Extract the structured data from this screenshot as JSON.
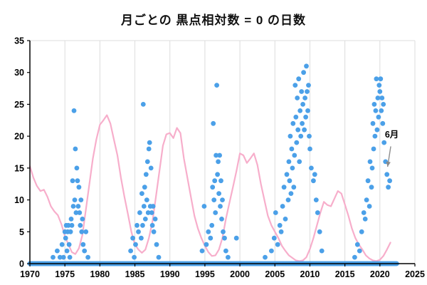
{
  "chart_data": {
    "type": "scatter",
    "title": "月ごとの  黒点相対数 = 0  の日数",
    "xlabel": "",
    "ylabel": "",
    "xlim": [
      1970,
      2025
    ],
    "ylim": [
      0,
      35
    ],
    "x_ticks": [
      1970,
      1975,
      1980,
      1985,
      1990,
      1995,
      2000,
      2005,
      2010,
      2015,
      2020,
      2025
    ],
    "y_ticks": [
      0,
      5,
      10,
      15,
      20,
      25,
      30,
      35
    ],
    "grid": "vertical",
    "legend": "none",
    "dot_radius": 3.4,
    "colors": {
      "dot": "#4BA0E8",
      "line": "#F7AECB",
      "grid": "#DCDCDC",
      "axis": "#000000",
      "arrow": "#8C8C8C",
      "text": "#000000"
    },
    "zero_dots": {
      "start": 1970.0,
      "end": 2022.4,
      "step": 0.0833
    },
    "scatter_points": [
      [
        1973.3,
        1
      ],
      [
        1973.9,
        2
      ],
      [
        1974.3,
        1
      ],
      [
        1974.6,
        3
      ],
      [
        1974.8,
        1
      ],
      [
        1975.0,
        5
      ],
      [
        1975.1,
        4
      ],
      [
        1975.2,
        6
      ],
      [
        1975.3,
        2
      ],
      [
        1975.4,
        5
      ],
      [
        1975.5,
        6
      ],
      [
        1975.6,
        3
      ],
      [
        1975.7,
        1
      ],
      [
        1975.8,
        5
      ],
      [
        1975.9,
        7
      ],
      [
        1976.0,
        6
      ],
      [
        1976.1,
        13
      ],
      [
        1976.2,
        9
      ],
      [
        1976.3,
        24
      ],
      [
        1976.4,
        10
      ],
      [
        1976.5,
        18
      ],
      [
        1976.6,
        8
      ],
      [
        1976.7,
        15
      ],
      [
        1976.8,
        13
      ],
      [
        1976.9,
        9
      ],
      [
        1977.0,
        12
      ],
      [
        1977.1,
        8
      ],
      [
        1977.2,
        6
      ],
      [
        1977.3,
        10
      ],
      [
        1977.4,
        5
      ],
      [
        1977.5,
        7
      ],
      [
        1977.6,
        3
      ],
      [
        1977.8,
        2
      ],
      [
        1978.0,
        5
      ],
      [
        1978.3,
        1
      ],
      [
        1984.4,
        2
      ],
      [
        1984.7,
        4
      ],
      [
        1984.9,
        1
      ],
      [
        1985.1,
        3
      ],
      [
        1985.3,
        6
      ],
      [
        1985.5,
        5
      ],
      [
        1985.7,
        8
      ],
      [
        1985.9,
        4
      ],
      [
        1986.0,
        11
      ],
      [
        1986.1,
        6
      ],
      [
        1986.2,
        25
      ],
      [
        1986.3,
        9
      ],
      [
        1986.4,
        12
      ],
      [
        1986.5,
        7
      ],
      [
        1986.6,
        14
      ],
      [
        1986.7,
        10
      ],
      [
        1986.8,
        16
      ],
      [
        1986.9,
        8
      ],
      [
        1987.0,
        18
      ],
      [
        1987.1,
        19
      ],
      [
        1987.2,
        9
      ],
      [
        1987.3,
        15
      ],
      [
        1987.4,
        8
      ],
      [
        1987.5,
        6
      ],
      [
        1987.6,
        9
      ],
      [
        1987.7,
        5
      ],
      [
        1987.9,
        7
      ],
      [
        1988.1,
        3
      ],
      [
        1988.4,
        1
      ],
      [
        1994.6,
        2
      ],
      [
        1994.9,
        9
      ],
      [
        1995.2,
        3
      ],
      [
        1995.5,
        5
      ],
      [
        1995.8,
        4
      ],
      [
        1996.0,
        6
      ],
      [
        1996.1,
        12
      ],
      [
        1996.2,
        22
      ],
      [
        1996.3,
        10
      ],
      [
        1996.4,
        13
      ],
      [
        1996.5,
        8
      ],
      [
        1996.6,
        17
      ],
      [
        1996.7,
        28
      ],
      [
        1996.8,
        14
      ],
      [
        1996.9,
        16
      ],
      [
        1997.0,
        11
      ],
      [
        1997.1,
        17
      ],
      [
        1997.2,
        9
      ],
      [
        1997.3,
        13
      ],
      [
        1997.4,
        7
      ],
      [
        1997.5,
        10
      ],
      [
        1997.6,
        5
      ],
      [
        1997.8,
        4
      ],
      [
        1998.0,
        2
      ],
      [
        1998.3,
        1
      ],
      [
        1999.5,
        4
      ],
      [
        2003.6,
        1
      ],
      [
        2004.5,
        2
      ],
      [
        2004.9,
        4
      ],
      [
        2005.1,
        8
      ],
      [
        2005.4,
        3
      ],
      [
        2005.7,
        6
      ],
      [
        2005.9,
        5
      ],
      [
        2006.1,
        9
      ],
      [
        2006.3,
        12
      ],
      [
        2006.5,
        7
      ],
      [
        2006.7,
        14
      ],
      [
        2006.9,
        10
      ],
      [
        2007.0,
        16
      ],
      [
        2007.1,
        13
      ],
      [
        2007.2,
        20
      ],
      [
        2007.3,
        11
      ],
      [
        2007.4,
        18
      ],
      [
        2007.5,
        15
      ],
      [
        2007.6,
        22
      ],
      [
        2007.7,
        12
      ],
      [
        2007.8,
        17
      ],
      [
        2007.9,
        28
      ],
      [
        2008.0,
        23
      ],
      [
        2008.1,
        19
      ],
      [
        2008.2,
        26
      ],
      [
        2008.3,
        21
      ],
      [
        2008.4,
        29
      ],
      [
        2008.5,
        16
      ],
      [
        2008.6,
        24
      ],
      [
        2008.7,
        20
      ],
      [
        2008.8,
        27
      ],
      [
        2008.9,
        22
      ],
      [
        2009.0,
        25
      ],
      [
        2009.1,
        30
      ],
      [
        2009.2,
        21
      ],
      [
        2009.3,
        26
      ],
      [
        2009.4,
        23
      ],
      [
        2009.5,
        31
      ],
      [
        2009.6,
        27
      ],
      [
        2009.7,
        24
      ],
      [
        2009.8,
        28
      ],
      [
        2009.9,
        20
      ],
      [
        2010.0,
        18
      ],
      [
        2010.2,
        15
      ],
      [
        2010.5,
        13
      ],
      [
        2010.7,
        14
      ],
      [
        2010.9,
        10
      ],
      [
        2011.1,
        8
      ],
      [
        2011.4,
        5
      ],
      [
        2011.7,
        2
      ],
      [
        2016.4,
        1
      ],
      [
        2016.8,
        3
      ],
      [
        2017.1,
        2
      ],
      [
        2017.4,
        5
      ],
      [
        2017.7,
        8
      ],
      [
        2017.9,
        7
      ],
      [
        2018.1,
        10
      ],
      [
        2018.3,
        13
      ],
      [
        2018.5,
        9
      ],
      [
        2018.6,
        16
      ],
      [
        2018.8,
        12
      ],
      [
        2018.9,
        15
      ],
      [
        2019.0,
        22
      ],
      [
        2019.1,
        18
      ],
      [
        2019.2,
        25
      ],
      [
        2019.3,
        20
      ],
      [
        2019.4,
        24
      ],
      [
        2019.5,
        29
      ],
      [
        2019.6,
        21
      ],
      [
        2019.7,
        26
      ],
      [
        2019.8,
        23
      ],
      [
        2019.9,
        28
      ],
      [
        2020.0,
        27
      ],
      [
        2020.1,
        29
      ],
      [
        2020.2,
        24
      ],
      [
        2020.3,
        26
      ],
      [
        2020.4,
        22
      ],
      [
        2020.5,
        25
      ],
      [
        2020.6,
        19
      ],
      [
        2020.8,
        16
      ],
      [
        2021.0,
        14
      ],
      [
        2021.2,
        12
      ],
      [
        2021.4,
        13
      ]
    ],
    "line_points": [
      [
        1970.0,
        15.3
      ],
      [
        1970.5,
        13.5
      ],
      [
        1971.0,
        12.2
      ],
      [
        1971.5,
        11.4
      ],
      [
        1972.0,
        11.6
      ],
      [
        1972.5,
        10.5
      ],
      [
        1973.0,
        9.0
      ],
      [
        1973.5,
        8.2
      ],
      [
        1974.0,
        7.6
      ],
      [
        1974.5,
        6.2
      ],
      [
        1975.0,
        4.3
      ],
      [
        1975.5,
        3.0
      ],
      [
        1976.0,
        1.8
      ],
      [
        1976.5,
        1.5
      ],
      [
        1977.0,
        2.4
      ],
      [
        1977.5,
        4.5
      ],
      [
        1978.0,
        8.5
      ],
      [
        1978.5,
        12.5
      ],
      [
        1979.0,
        16.5
      ],
      [
        1979.5,
        19.5
      ],
      [
        1980.0,
        21.8
      ],
      [
        1980.5,
        22.5
      ],
      [
        1981.0,
        23.3
      ],
      [
        1981.5,
        22.0
      ],
      [
        1982.0,
        19.5
      ],
      [
        1982.5,
        17.0
      ],
      [
        1983.0,
        13.5
      ],
      [
        1983.5,
        10.5
      ],
      [
        1984.0,
        7.8
      ],
      [
        1984.5,
        5.0
      ],
      [
        1985.0,
        3.0
      ],
      [
        1985.5,
        2.2
      ],
      [
        1986.0,
        1.7
      ],
      [
        1986.5,
        2.2
      ],
      [
        1987.0,
        4.0
      ],
      [
        1987.5,
        6.5
      ],
      [
        1988.0,
        10.5
      ],
      [
        1988.5,
        14.5
      ],
      [
        1989.0,
        18.5
      ],
      [
        1989.5,
        20.3
      ],
      [
        1990.0,
        20.5
      ],
      [
        1990.5,
        19.7
      ],
      [
        1991.0,
        21.3
      ],
      [
        1991.5,
        20.5
      ],
      [
        1992.0,
        16.5
      ],
      [
        1992.5,
        13.5
      ],
      [
        1993.0,
        10.5
      ],
      [
        1993.5,
        7.5
      ],
      [
        1994.0,
        5.5
      ],
      [
        1994.5,
        4.0
      ],
      [
        1995.0,
        2.8
      ],
      [
        1995.5,
        1.8
      ],
      [
        1996.0,
        1.2
      ],
      [
        1996.5,
        1.3
      ],
      [
        1997.0,
        2.2
      ],
      [
        1997.5,
        4.0
      ],
      [
        1998.0,
        7.0
      ],
      [
        1998.5,
        9.5
      ],
      [
        1999.0,
        12.0
      ],
      [
        1999.5,
        14.5
      ],
      [
        2000.0,
        17.3
      ],
      [
        2000.5,
        17.0
      ],
      [
        2001.0,
        15.8
      ],
      [
        2001.5,
        16.5
      ],
      [
        2002.0,
        17.3
      ],
      [
        2002.5,
        15.5
      ],
      [
        2003.0,
        12.5
      ],
      [
        2003.5,
        10.0
      ],
      [
        2004.0,
        7.5
      ],
      [
        2004.5,
        6.0
      ],
      [
        2005.0,
        5.0
      ],
      [
        2005.5,
        4.0
      ],
      [
        2006.0,
        2.8
      ],
      [
        2006.5,
        2.0
      ],
      [
        2007.0,
        1.3
      ],
      [
        2007.5,
        0.9
      ],
      [
        2008.0,
        0.5
      ],
      [
        2008.5,
        0.4
      ],
      [
        2009.0,
        0.5
      ],
      [
        2009.5,
        1.0
      ],
      [
        2010.0,
        2.3
      ],
      [
        2010.5,
        4.0
      ],
      [
        2011.0,
        6.0
      ],
      [
        2011.5,
        8.0
      ],
      [
        2012.0,
        9.7
      ],
      [
        2012.5,
        9.2
      ],
      [
        2013.0,
        9.0
      ],
      [
        2013.5,
        10.2
      ],
      [
        2014.0,
        11.4
      ],
      [
        2014.5,
        11.0
      ],
      [
        2015.0,
        9.3
      ],
      [
        2015.5,
        7.5
      ],
      [
        2016.0,
        5.5
      ],
      [
        2016.5,
        4.0
      ],
      [
        2017.0,
        3.0
      ],
      [
        2017.5,
        2.2
      ],
      [
        2018.0,
        1.3
      ],
      [
        2018.5,
        0.8
      ],
      [
        2019.0,
        0.5
      ],
      [
        2019.5,
        0.4
      ],
      [
        2020.0,
        0.6
      ],
      [
        2020.5,
        1.2
      ],
      [
        2021.0,
        2.2
      ],
      [
        2021.5,
        3.3
      ]
    ],
    "annotation": {
      "label": "6月",
      "text_x": 2021.7,
      "text_y": 19.8,
      "arrow_from": [
        2021.55,
        18.4
      ],
      "arrow_to": [
        2021.1,
        15.2
      ]
    }
  }
}
